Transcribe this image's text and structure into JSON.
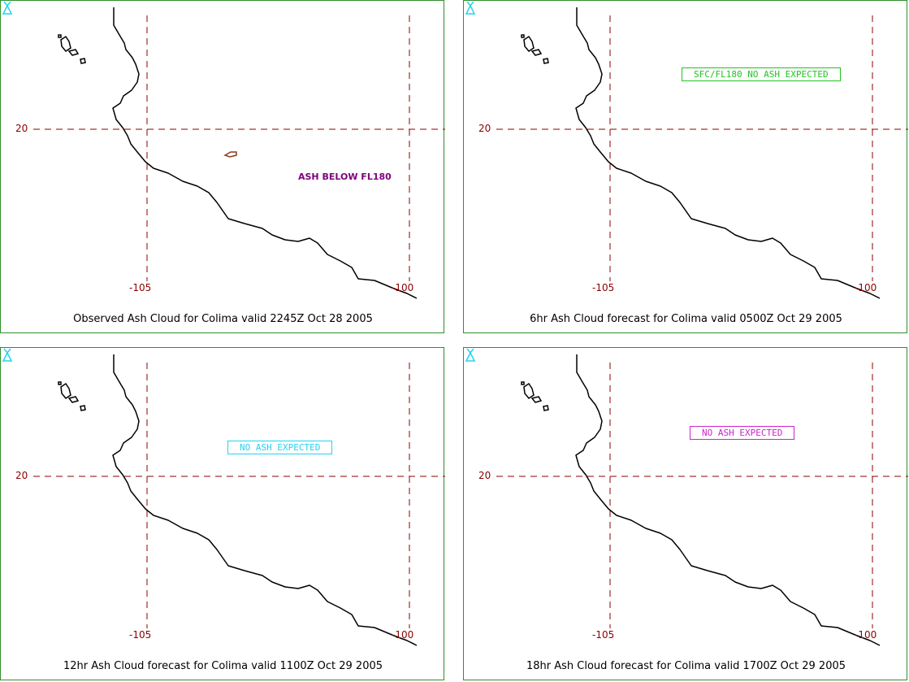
{
  "colors": {
    "grid": "#8b0000",
    "panel_border": "#2f8f2f",
    "volcano": "#22d3ee",
    "ash_observed": "#800080",
    "ash_plume": "#8b3a1a"
  },
  "labels": {
    "lat_20": "20",
    "lon_105": "-105",
    "lon_100": "-100"
  },
  "panels": [
    {
      "caption": "Observed Ash Cloud for Colima valid 2245Z Oct 28 2005",
      "message": "ASH BELOW FL180",
      "message_style": "plain",
      "message_color": "#800080",
      "has_plume": true
    },
    {
      "caption": "6hr Ash Cloud forecast for Colima valid 0500Z Oct 29 2005",
      "message": "SFC/FL180 NO ASH EXPECTED",
      "message_style": "boxed",
      "message_color": "#22c322",
      "has_plume": false
    },
    {
      "caption": "12hr Ash Cloud forecast for Colima valid 1100Z Oct 29 2005",
      "message": "NO ASH EXPECTED",
      "message_style": "boxed",
      "message_color": "#22d3ee",
      "has_plume": false
    },
    {
      "caption": "18hr Ash Cloud forecast for Colima valid 1700Z Oct 29 2005",
      "message": "NO ASH EXPECTED",
      "message_style": "boxed",
      "message_color": "#cc22cc",
      "has_plume": false
    }
  ]
}
